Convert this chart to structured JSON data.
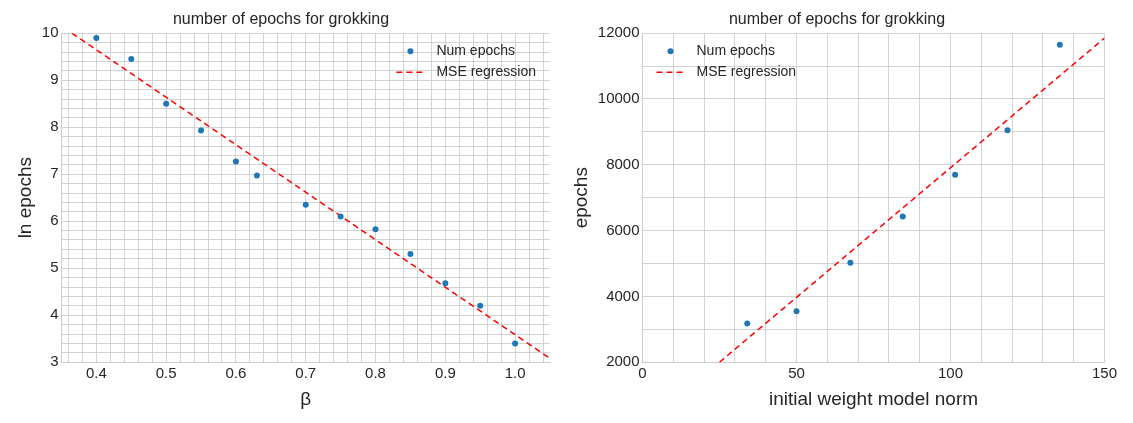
{
  "chart_data": [
    {
      "type": "scatter",
      "title": "number of epochs for grokking",
      "xlabel": "β",
      "ylabel": "ln epochs",
      "xlim": [
        0.35,
        1.05
      ],
      "ylim": [
        3,
        10
      ],
      "xticks": [
        {
          "value": 0.36,
          "label": null
        },
        {
          "value": 0.38,
          "label": null
        },
        0.4,
        {
          "value": 0.42,
          "label": null
        },
        {
          "value": 0.44,
          "label": null
        },
        {
          "value": 0.46,
          "label": null
        },
        {
          "value": 0.48,
          "label": null
        },
        0.5,
        {
          "value": 0.52,
          "label": null
        },
        {
          "value": 0.54,
          "label": null
        },
        {
          "value": 0.56,
          "label": null
        },
        {
          "value": 0.58,
          "label": null
        },
        0.6,
        {
          "value": 0.62,
          "label": null
        },
        {
          "value": 0.64,
          "label": null
        },
        {
          "value": 0.66,
          "label": null
        },
        {
          "value": 0.68,
          "label": null
        },
        0.7,
        {
          "value": 0.72,
          "label": null
        },
        {
          "value": 0.74,
          "label": null
        },
        {
          "value": 0.76,
          "label": null
        },
        {
          "value": 0.78,
          "label": null
        },
        0.8,
        {
          "value": 0.82,
          "label": null
        },
        {
          "value": 0.84,
          "label": null
        },
        {
          "value": 0.86,
          "label": null
        },
        {
          "value": 0.88,
          "label": null
        },
        0.9,
        {
          "value": 0.92,
          "label": null
        },
        {
          "value": 0.94,
          "label": null
        },
        {
          "value": 0.96,
          "label": null
        },
        {
          "value": 0.98,
          "label": null
        },
        {
          "value": 1,
          "label": "1.0"
        },
        {
          "value": 1.02,
          "label": null
        },
        {
          "value": 1.04,
          "label": null
        }
      ],
      "yticks": [
        3,
        {
          "value": 3.2,
          "label": null
        },
        {
          "value": 3.4,
          "label": null
        },
        {
          "value": 3.6,
          "label": null
        },
        {
          "value": 3.8,
          "label": null
        },
        4,
        {
          "value": 4.2,
          "label": null
        },
        {
          "value": 4.4,
          "label": null
        },
        {
          "value": 4.6,
          "label": null
        },
        {
          "value": 4.8,
          "label": null
        },
        5,
        {
          "value": 5.2,
          "label": null
        },
        {
          "value": 5.4,
          "label": null
        },
        {
          "value": 5.6,
          "label": null
        },
        {
          "value": 5.8,
          "label": null
        },
        6,
        {
          "value": 6.2,
          "label": null
        },
        {
          "value": 6.4,
          "label": null
        },
        {
          "value": 6.6,
          "label": null
        },
        {
          "value": 6.8,
          "label": null
        },
        7,
        {
          "value": 7.2,
          "label": null
        },
        {
          "value": 7.4,
          "label": null
        },
        {
          "value": 7.6,
          "label": null
        },
        {
          "value": 7.8,
          "label": null
        },
        8,
        {
          "value": 8.2,
          "label": null
        },
        {
          "value": 8.4,
          "label": null
        },
        {
          "value": 8.6,
          "label": null
        },
        {
          "value": 8.8,
          "label": null
        },
        9,
        {
          "value": 9.2,
          "label": null
        },
        {
          "value": 9.4,
          "label": null
        },
        {
          "value": 9.6,
          "label": null
        },
        {
          "value": 9.8,
          "label": null
        },
        10
      ],
      "grid": true,
      "legend": "top right",
      "series": [
        {
          "name": "Num epochs",
          "type": "scatter",
          "color": "#1f77b4",
          "marker": "circle",
          "x": [
            0.4,
            0.45,
            0.5,
            0.55,
            0.6,
            0.63,
            0.7,
            0.75,
            0.8,
            0.85,
            0.9,
            0.95,
            1.0
          ],
          "values": [
            9.9,
            9.45,
            8.5,
            7.93,
            7.27,
            6.97,
            6.35,
            6.1,
            5.83,
            5.3,
            4.68,
            4.2,
            3.4
          ]
        },
        {
          "name": "MSE regression",
          "type": "line",
          "color": "#ff0000",
          "line_style": "dashed",
          "marker": "none",
          "x": [
            0.365,
            1.05
          ],
          "values": [
            10,
            3.08
          ]
        }
      ]
    },
    {
      "type": "scatter",
      "title": "number of epochs for grokking",
      "xlabel": "initial weight model norm",
      "ylabel": "epochs",
      "xlim": [
        0,
        150
      ],
      "ylim": [
        2000,
        12000
      ],
      "xticks": [
        0,
        {
          "value": 10,
          "label": null
        },
        {
          "value": 20,
          "label": null
        },
        {
          "value": 30,
          "label": null
        },
        {
          "value": 40,
          "label": null
        },
        50,
        {
          "value": 60,
          "label": null
        },
        {
          "value": 70,
          "label": null
        },
        {
          "value": 80,
          "label": null
        },
        {
          "value": 90,
          "label": null
        },
        100,
        {
          "value": 110,
          "label": null
        },
        {
          "value": 120,
          "label": null
        },
        {
          "value": 130,
          "label": null
        },
        {
          "value": 140,
          "label": null
        },
        150
      ],
      "yticks": [
        2000,
        {
          "value": 3000,
          "label": null
        },
        4000,
        {
          "value": 5000,
          "label": null
        },
        6000,
        {
          "value": 7000,
          "label": null
        },
        8000,
        {
          "value": 9000,
          "label": null
        },
        10000,
        {
          "value": 11000,
          "label": null
        },
        12000
      ],
      "grid": true,
      "legend": "top left",
      "series": [
        {
          "name": "Num epochs",
          "type": "scatter",
          "color": "#1f77b4",
          "marker": "circle",
          "x": [
            34,
            50,
            67.5,
            84.5,
            101.5,
            118.5,
            135.5
          ],
          "values": [
            3180,
            3550,
            5020,
            6430,
            7700,
            9050,
            11650
          ]
        },
        {
          "name": "MSE regression",
          "type": "line",
          "color": "#ff0000",
          "line_style": "dashed",
          "marker": "none",
          "x": [
            25,
            150
          ],
          "values": [
            2000,
            11850
          ]
        }
      ]
    }
  ]
}
